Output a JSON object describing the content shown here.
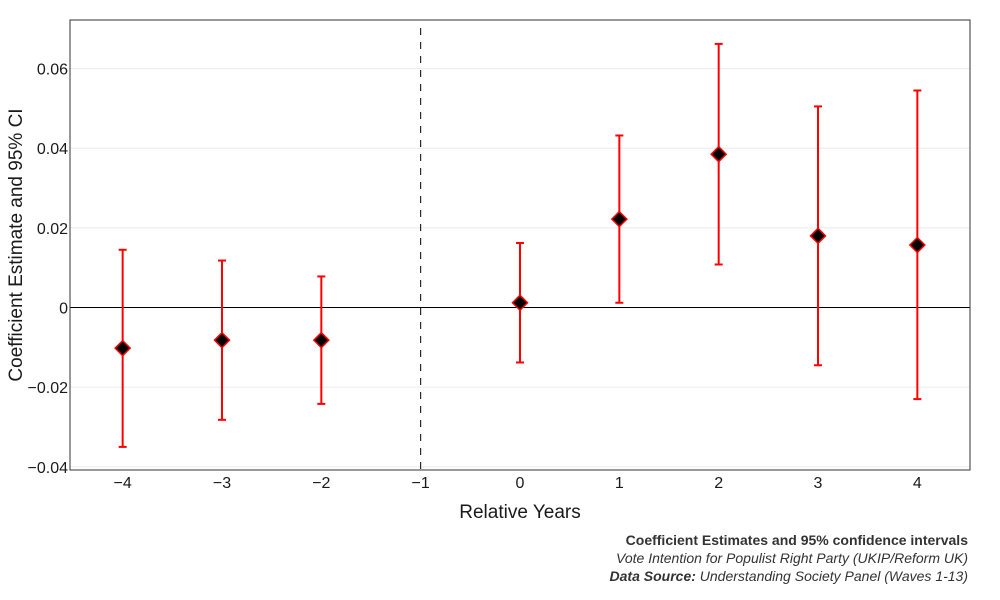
{
  "chart_data": {
    "type": "scatter",
    "subtype": "errorbar",
    "xlabel": "Relative Years",
    "ylabel": "Coefficient Estimate and 95% CI",
    "xlim": [
      -4.53,
      4.53
    ],
    "ylim": [
      -0.0408,
      0.0722
    ],
    "x_ticks": [
      -4,
      -3,
      -2,
      -1,
      0,
      1,
      2,
      3,
      4
    ],
    "x_tick_labels": [
      "−4",
      "−3",
      "−2",
      "−1",
      "0",
      "1",
      "2",
      "3",
      "4"
    ],
    "y_ticks": [
      -0.04,
      -0.02,
      0,
      0.02,
      0.04,
      0.06
    ],
    "y_tick_labels": [
      "−0.04",
      "−0.02",
      "0",
      "0.02",
      "0.04",
      "0.06"
    ],
    "grid": true,
    "reference_hline": 0,
    "reference_vline": -1,
    "points": [
      {
        "x": -4,
        "estimate": -0.0102,
        "ci_low": -0.035,
        "ci_high": 0.0145
      },
      {
        "x": -3,
        "estimate": -0.0082,
        "ci_low": -0.0282,
        "ci_high": 0.0118
      },
      {
        "x": -2,
        "estimate": -0.0082,
        "ci_low": -0.0242,
        "ci_high": 0.0078
      },
      {
        "x": 0,
        "estimate": 0.0012,
        "ci_low": -0.0138,
        "ci_high": 0.0162
      },
      {
        "x": 1,
        "estimate": 0.0222,
        "ci_low": 0.0012,
        "ci_high": 0.0432
      },
      {
        "x": 2,
        "estimate": 0.0385,
        "ci_low": 0.0108,
        "ci_high": 0.0662
      },
      {
        "x": 3,
        "estimate": 0.018,
        "ci_low": -0.0145,
        "ci_high": 0.0505
      },
      {
        "x": 4,
        "estimate": 0.0157,
        "ci_low": -0.023,
        "ci_high": 0.0545
      }
    ],
    "colors": {
      "error_bar": "#ff0000",
      "marker_fill": "#000000",
      "marker_edge": "#ff0000",
      "zero_line": "#000000",
      "reference_line": "#000000",
      "grid": "#ebebeb"
    }
  },
  "caption": {
    "title": "Coefficient Estimates and 95% confidence intervals",
    "subtitle": "Vote Intention for Populist Right Party (UKIP/Reform UK)",
    "source_label": "Data Source:",
    "source_text": "Understanding Society Panel (Waves 1-13)"
  }
}
